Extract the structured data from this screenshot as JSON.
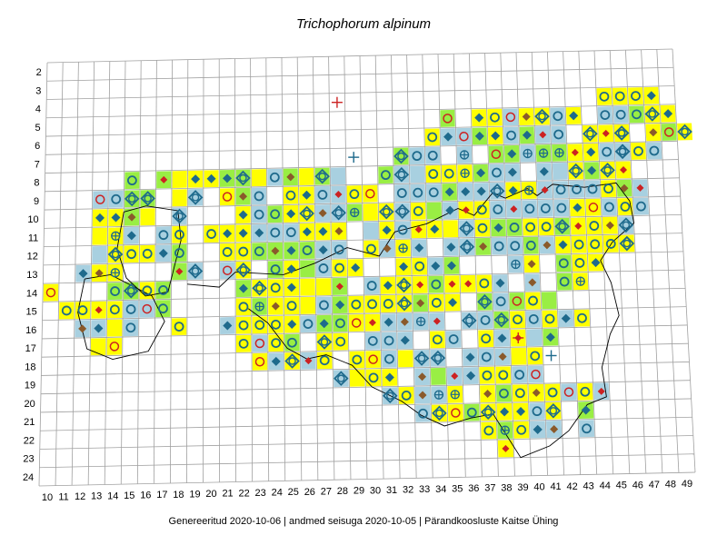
{
  "title": "Trichophorum alpinum",
  "footer": "Genereeritud 2020-10-06  |  andmed seisuga 2020-10-05  |  Pärandkoosluste Kaitse Ühing",
  "colors": {
    "grid": "#a0a0a0",
    "yellow": "#ffff00",
    "lightblue": "#a8d0e0",
    "green": "#99ee44",
    "blue_marker": "#1e6a8c",
    "red_marker": "#cc2222",
    "brown_marker": "#8a5a2b",
    "coast": "#000000"
  },
  "chart_data": {
    "type": "heatmap",
    "x_ticks": [
      "10",
      "11",
      "12",
      "13",
      "14",
      "15",
      "16",
      "17",
      "18",
      "19",
      "20",
      "21",
      "22",
      "23",
      "24",
      "25",
      "26",
      "27",
      "28",
      "29",
      "30",
      "31",
      "32",
      "33",
      "34",
      "35",
      "36",
      "37",
      "38",
      "39",
      "40",
      "41",
      "42",
      "43",
      "44",
      "45",
      "46",
      "47",
      "48",
      "49"
    ],
    "y_ticks": [
      "2",
      "3",
      "4",
      "5",
      "6",
      "7",
      "8",
      "9",
      "10",
      "11",
      "12",
      "13",
      "14",
      "15",
      "16",
      "17",
      "18",
      "19",
      "20",
      "21",
      "22",
      "23",
      "24"
    ],
    "legend": "none"
  }
}
